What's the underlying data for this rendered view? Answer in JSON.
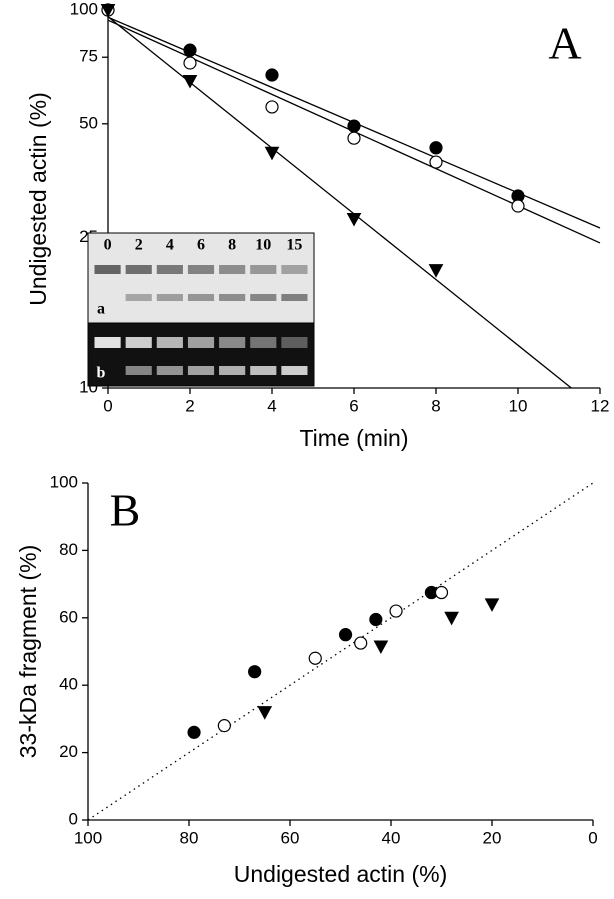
{
  "chart_data": [
    {
      "type": "scatter",
      "panel_label": "A",
      "x_label": "Time (min)",
      "y_label": "Undigested actin (%)",
      "xlim": [
        0,
        12
      ],
      "xticks": [
        0,
        2,
        4,
        6,
        8,
        10,
        12
      ],
      "ylim": [
        10,
        100
      ],
      "yticks": [
        10,
        25,
        50,
        75,
        100
      ],
      "log_y": true,
      "series": [
        {
          "marker": "filled-circle",
          "color": "#000000",
          "x": [
            0,
            2,
            4,
            6,
            8,
            10
          ],
          "values": [
            100,
            78.3,
            67.3,
            49.3,
            43.2,
            32.2
          ],
          "fit": {
            "x": [
              0,
              12
            ],
            "values": [
              95.7,
              26.5
            ]
          }
        },
        {
          "marker": "open-circle",
          "color": "#000000",
          "x": [
            0,
            2,
            4,
            6,
            8,
            10
          ],
          "values": [
            100,
            72.4,
            55.4,
            45.8,
            39.6,
            30.3
          ],
          "fit": {
            "x": [
              0,
              12
            ],
            "values": [
              94,
              24.2
            ]
          }
        },
        {
          "marker": "filled-triangle",
          "color": "#000000",
          "x": [
            0,
            2,
            4,
            6,
            8
          ],
          "values": [
            100,
            64.9,
            41.9,
            28.0,
            20.5
          ],
          "fit": {
            "x": [
              0,
              11.3
            ],
            "values": [
              96,
              10
            ]
          }
        }
      ],
      "inset": {
        "lane_labels": [
          "0",
          "2",
          "4",
          "6",
          "8",
          "10",
          "15"
        ],
        "panel_labels": [
          "a",
          "b"
        ]
      }
    },
    {
      "type": "scatter",
      "panel_label": "B",
      "x_label": "Undigested actin (%)",
      "y_label": "33-kDa fragment (%)",
      "xlim": [
        100,
        0
      ],
      "xticks": [
        100,
        80,
        60,
        40,
        20,
        0
      ],
      "ylim": [
        0,
        100
      ],
      "yticks": [
        0,
        20,
        40,
        60,
        80,
        100
      ],
      "reference_line": {
        "x": [
          100,
          0
        ],
        "values": [
          0,
          100
        ]
      },
      "series": [
        {
          "marker": "filled-circle",
          "color": "#000000",
          "x": [
            79,
            67,
            49,
            43,
            32
          ],
          "values": [
            26,
            44,
            55,
            59.5,
            67.5
          ]
        },
        {
          "marker": "open-circle",
          "color": "#000000",
          "x": [
            73,
            55,
            46,
            39,
            30
          ],
          "values": [
            28,
            48,
            52.5,
            62,
            67.5
          ]
        },
        {
          "marker": "filled-triangle",
          "color": "#000000",
          "x": [
            65,
            42,
            28,
            20
          ],
          "values": [
            32,
            51.5,
            60,
            64
          ]
        }
      ]
    }
  ]
}
